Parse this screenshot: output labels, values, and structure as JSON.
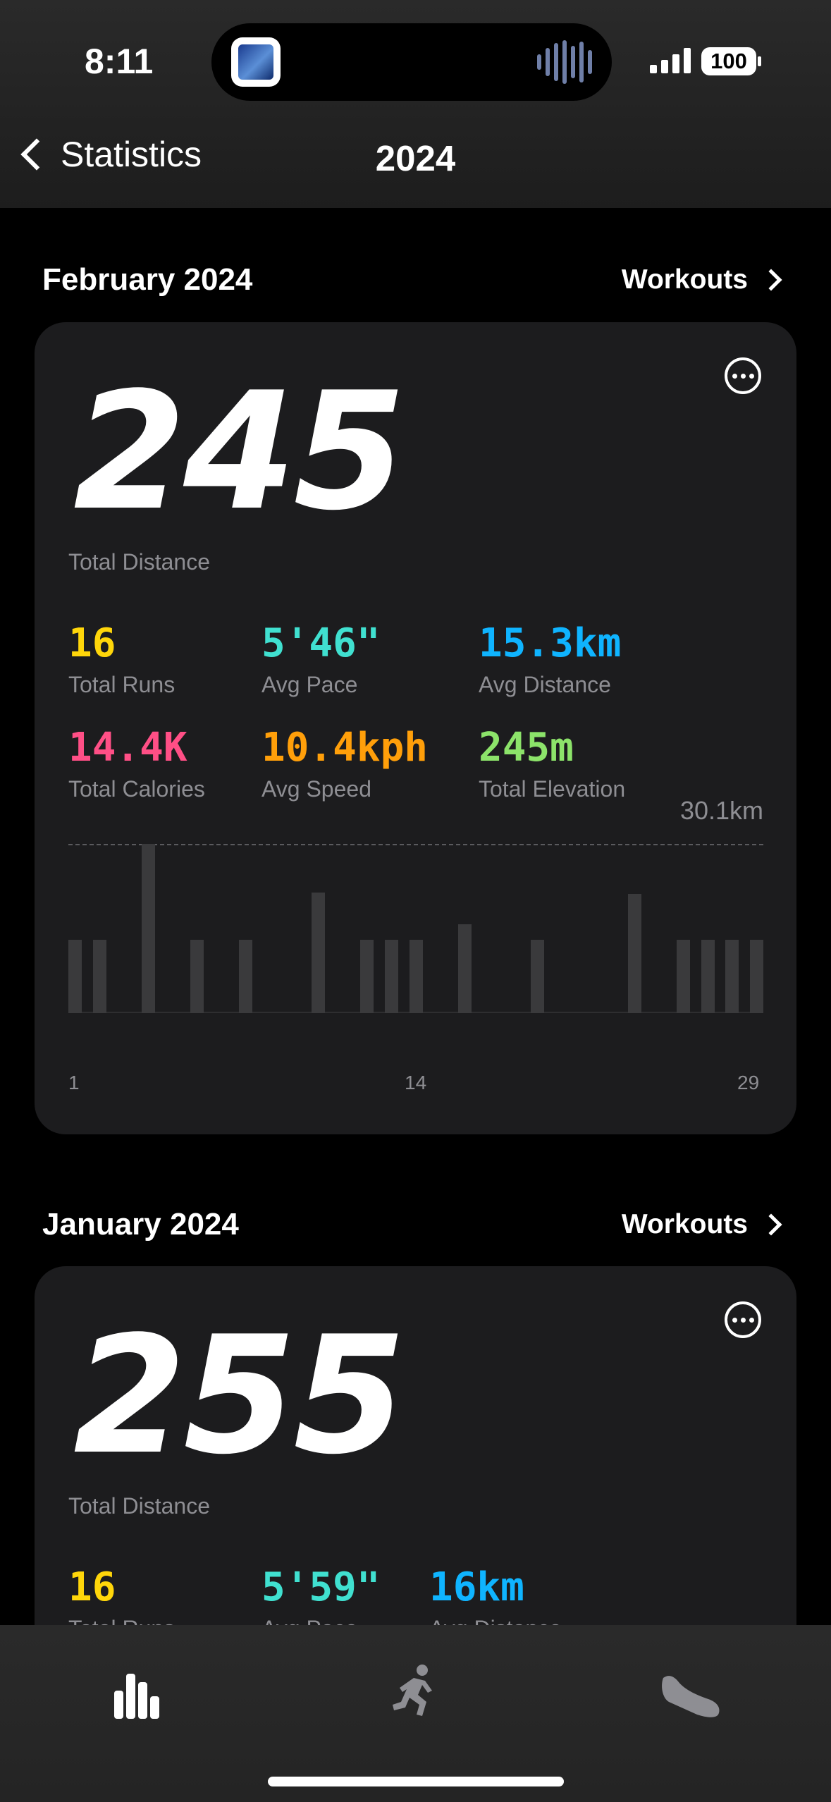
{
  "status_bar": {
    "time": "8:11",
    "battery": "100"
  },
  "nav": {
    "back_label": "Statistics",
    "title": "2024"
  },
  "sections": [
    {
      "title": "February 2024",
      "workouts_label": "Workouts",
      "total_distance": "245",
      "total_distance_label": "Total Distance",
      "stats": [
        {
          "value": "16",
          "label": "Total Runs",
          "color": "#ffd60a"
        },
        {
          "value": "5'46\"",
          "label": "Avg Pace",
          "color": "#40e0d0"
        },
        {
          "value": "15.3km",
          "label": "Avg Distance",
          "color": "#0fb4ff"
        },
        {
          "value": "14.4K",
          "label": "Total Calories",
          "color": "#ff4f86"
        },
        {
          "value": "10.4kph",
          "label": "Avg Speed",
          "color": "#ff9f0a"
        },
        {
          "value": "245m",
          "label": "Total Elevation",
          "color": "#8ce36a"
        }
      ]
    },
    {
      "title": "January 2024",
      "workouts_label": "Workouts",
      "total_distance": "255",
      "total_distance_label": "Total Distance",
      "stats": [
        {
          "value": "16",
          "label": "Total Runs",
          "color": "#ffd60a"
        },
        {
          "value": "5'59\"",
          "label": "Avg Pace",
          "color": "#40e0d0"
        },
        {
          "value": "16km",
          "label": "Avg Distance",
          "color": "#0fb4ff"
        }
      ]
    }
  ],
  "chart_data": {
    "type": "bar",
    "max_label": "30.1km",
    "x_ticks": [
      "1",
      "14",
      "29"
    ],
    "x": [
      1,
      2,
      4,
      6,
      8,
      11,
      13,
      14,
      15,
      17,
      20,
      24,
      26,
      27,
      28,
      29
    ],
    "values": [
      13,
      13,
      30.1,
      13,
      13,
      21.5,
      13,
      13,
      13,
      15.8,
      13,
      21.2,
      13,
      13,
      13,
      13
    ],
    "ylim": [
      0,
      30.1
    ],
    "xlim": [
      1,
      29
    ]
  },
  "tabs": [
    {
      "icon": "stats-icon",
      "active": true
    },
    {
      "icon": "runner-icon",
      "active": false
    },
    {
      "icon": "shoe-icon",
      "active": false
    }
  ]
}
